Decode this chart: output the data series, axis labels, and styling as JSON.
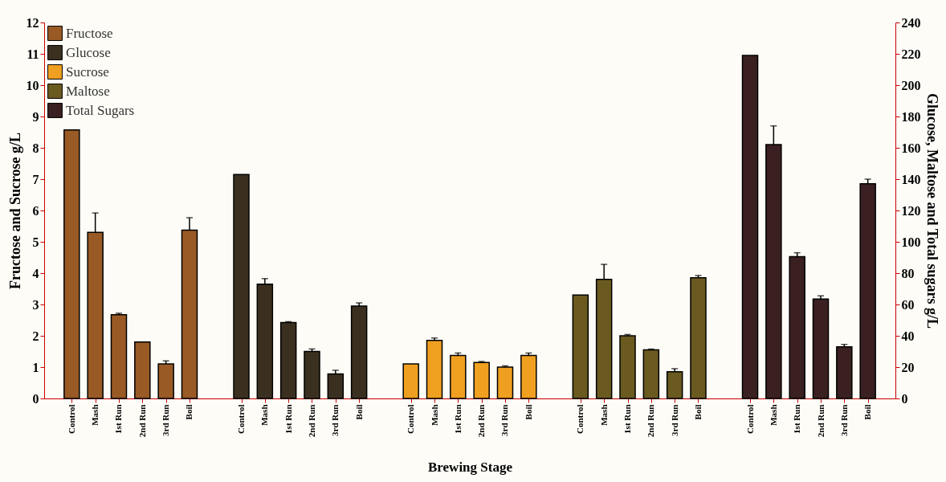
{
  "chart_data": {
    "type": "bar",
    "xlabel": "Brewing Stage",
    "ylabel": "Fructose and Sucrose g/L",
    "y2label": "Glucose, Maltose and Total sugars g/L",
    "categories": [
      "Control",
      "Mash",
      "1st Run",
      "2nd Run",
      "3rd Run",
      "Boil",
      "Control",
      "Mash",
      "1st Run",
      "2nd Run",
      "3rd Run",
      "Boil",
      "Control",
      "Mash",
      "1st Run",
      "2nd Run",
      "3rd Run",
      "Boil",
      "Control",
      "Mash",
      "1st Run",
      "2nd Run",
      "3rd Run",
      "Boil",
      "Control",
      "Mash",
      "1st Run",
      "2nd Run",
      "3rd Run",
      "Boil"
    ],
    "series": [
      {
        "name": "Fructose",
        "color": "#9a5a25",
        "values": [
          8.57,
          5.3,
          2.67,
          1.8,
          1.1,
          5.37,
          null,
          null,
          null,
          null,
          null,
          null,
          null,
          null,
          null,
          null,
          null,
          null,
          null,
          null,
          null,
          null,
          null,
          null,
          null,
          null,
          null,
          null,
          null,
          null
        ],
        "errors": [
          null,
          [
            5.3,
            5.92
          ],
          [
            2.67,
            2.72
          ],
          null,
          [
            1.1,
            1.2
          ],
          [
            5.37,
            5.77
          ],
          null,
          null,
          null,
          null,
          null,
          null,
          null,
          null,
          null,
          null,
          null,
          null,
          null,
          null,
          null,
          null,
          null,
          null,
          null,
          null,
          null,
          null,
          null,
          null
        ]
      },
      {
        "name": "Glucose",
        "color": "#3b3020",
        "axis": "y2",
        "values": [
          null,
          null,
          null,
          null,
          null,
          null,
          143,
          73,
          48.4,
          30,
          15.6,
          59,
          null,
          null,
          null,
          null,
          null,
          null,
          null,
          null,
          null,
          null,
          null,
          null,
          null,
          null,
          null,
          null,
          null,
          null
        ],
        "errors": [
          null,
          null,
          null,
          null,
          null,
          null,
          null,
          [
            73,
            76.5
          ],
          [
            48.4,
            49
          ],
          [
            30,
            31.6
          ],
          [
            15.6,
            18
          ],
          [
            59,
            61
          ],
          null,
          null,
          null,
          null,
          null,
          null,
          null,
          null,
          null,
          null,
          null,
          null,
          null,
          null,
          null,
          null,
          null,
          null
        ]
      },
      {
        "name": "Sucrose",
        "color": "#f0a020",
        "values": [
          null,
          null,
          null,
          null,
          null,
          null,
          null,
          null,
          null,
          null,
          null,
          null,
          1.1,
          1.85,
          1.37,
          1.15,
          1.0,
          1.37,
          null,
          null,
          null,
          null,
          null,
          null,
          null,
          null,
          null,
          null,
          null,
          null
        ],
        "errors": [
          null,
          null,
          null,
          null,
          null,
          null,
          null,
          null,
          null,
          null,
          null,
          null,
          null,
          [
            1.85,
            1.93
          ],
          [
            1.37,
            1.45
          ],
          [
            1.15,
            1.18
          ],
          [
            1.0,
            1.04
          ],
          [
            1.37,
            1.45
          ],
          null,
          null,
          null,
          null,
          null,
          null,
          null,
          null,
          null,
          null,
          null,
          null
        ]
      },
      {
        "name": "Maltose",
        "color": "#6b5a20",
        "axis": "y2",
        "values": [
          null,
          null,
          null,
          null,
          null,
          null,
          null,
          null,
          null,
          null,
          null,
          null,
          null,
          null,
          null,
          null,
          null,
          null,
          66,
          76,
          40,
          31,
          17,
          77,
          null,
          null,
          null,
          null,
          null,
          null
        ],
        "errors": [
          null,
          null,
          null,
          null,
          null,
          null,
          null,
          null,
          null,
          null,
          null,
          null,
          null,
          null,
          null,
          null,
          null,
          null,
          null,
          [
            76,
            85.6
          ],
          [
            40,
            40.8
          ],
          [
            31,
            31.5
          ],
          [
            17,
            19
          ],
          [
            77,
            78.5
          ],
          null,
          null,
          null,
          null,
          null,
          null
        ]
      },
      {
        "name": "Total Sugars",
        "color": "#3a2020",
        "axis": "y2",
        "values": [
          null,
          null,
          null,
          null,
          null,
          null,
          null,
          null,
          null,
          null,
          null,
          null,
          null,
          null,
          null,
          null,
          null,
          null,
          null,
          null,
          null,
          null,
          null,
          null,
          219,
          162,
          90.5,
          63.5,
          33,
          137
        ],
        "errors": [
          null,
          null,
          null,
          null,
          null,
          null,
          null,
          null,
          null,
          null,
          null,
          null,
          null,
          null,
          null,
          null,
          null,
          null,
          null,
          null,
          null,
          null,
          null,
          null,
          null,
          [
            162,
            174
          ],
          [
            90.5,
            93
          ],
          [
            63.5,
            65.5
          ],
          [
            33,
            34.5
          ],
          [
            137,
            140
          ]
        ]
      }
    ],
    "ylim": [
      0,
      12
    ],
    "yticks": [
      0,
      1,
      2,
      3,
      4,
      5,
      6,
      7,
      8,
      9,
      10,
      11,
      12
    ],
    "y2lim": [
      0,
      240
    ],
    "y2ticks": [
      0,
      20,
      40,
      60,
      80,
      100,
      120,
      140,
      160,
      180,
      200,
      220,
      240
    ],
    "legend": "top left",
    "grid": false
  }
}
